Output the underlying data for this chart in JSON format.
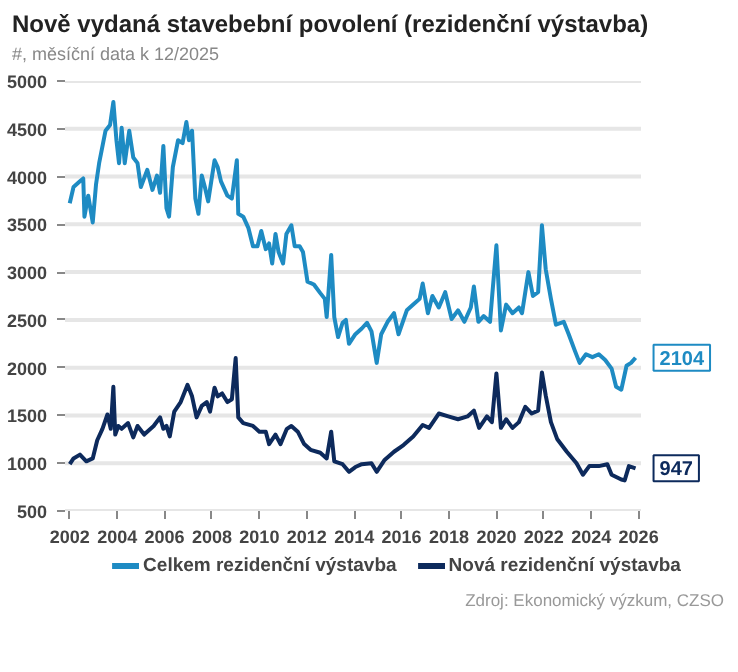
{
  "chart_data": {
    "type": "line",
    "title": "Nově vydaná stavebební povolení (rezidenční výstavba)",
    "subtitle": "#, měsíční data k 12/2025",
    "xlim": [
      2001.8,
      2026.1
    ],
    "xticks": [
      2002,
      2004,
      2006,
      2008,
      2010,
      2012,
      2014,
      2016,
      2018,
      2020,
      2022,
      2024,
      2026
    ],
    "ylim": [
      500,
      5000
    ],
    "yticks": [
      500,
      1000,
      1500,
      2000,
      2500,
      3000,
      3500,
      4000,
      4500,
      5000
    ],
    "grid": "y",
    "legend": "bottom",
    "line_style": "solid",
    "marker": "none",
    "annotations": [
      {
        "text": "2104",
        "x": 2025.87,
        "y": 2104
      },
      {
        "text": "947",
        "x": 2025.87,
        "y": 947
      },
      "Zdroj: Ekonomický výzkum, CZSO"
    ],
    "series": [
      {
        "name": "Celkem rezidenční výstavba",
        "color": "#1e8bc3",
        "x": [
          2002.0,
          2002.16,
          2002.43,
          2002.57,
          2002.62,
          2002.78,
          2002.97,
          2003.11,
          2003.24,
          2003.51,
          2003.7,
          2003.84,
          2003.97,
          2004.08,
          2004.19,
          2004.32,
          2004.51,
          2004.68,
          2004.86,
          2005.0,
          2005.27,
          2005.49,
          2005.68,
          2005.81,
          2005.95,
          2006.08,
          2006.19,
          2006.35,
          2006.57,
          2006.76,
          2006.92,
          2007.03,
          2007.16,
          2007.3,
          2007.43,
          2007.57,
          2007.7,
          2007.84,
          2007.97,
          2008.11,
          2008.24,
          2008.38,
          2008.65,
          2008.84,
          2009.05,
          2009.11,
          2009.32,
          2009.54,
          2009.73,
          2009.92,
          2010.08,
          2010.27,
          2010.41,
          2010.54,
          2010.68,
          2010.81,
          2011.0,
          2011.14,
          2011.35,
          2011.49,
          2011.7,
          2011.84,
          2012.03,
          2012.3,
          2012.57,
          2012.76,
          2012.84,
          2013.03,
          2013.16,
          2013.32,
          2013.51,
          2013.65,
          2013.78,
          2014.05,
          2014.32,
          2014.54,
          2014.73,
          2014.95,
          2015.14,
          2015.41,
          2015.68,
          2015.87,
          2016.22,
          2016.49,
          2016.76,
          2016.89,
          2017.11,
          2017.3,
          2017.57,
          2017.84,
          2018.11,
          2018.38,
          2018.65,
          2018.92,
          2019.05,
          2019.24,
          2019.46,
          2019.73,
          2020.0,
          2020.19,
          2020.41,
          2020.68,
          2020.95,
          2021.08,
          2021.35,
          2021.54,
          2021.76,
          2021.92,
          2022.08,
          2022.3,
          2022.51,
          2022.84,
          2023.05,
          2023.32,
          2023.51,
          2023.78,
          2024.05,
          2024.32,
          2024.59,
          2024.86,
          2025.05,
          2025.27,
          2025.49,
          2025.68,
          2025.87
        ],
        "values": [
          3720,
          3890,
          3950,
          3980,
          3580,
          3800,
          3520,
          3920,
          4140,
          4480,
          4540,
          4780,
          4380,
          4140,
          4510,
          4140,
          4480,
          4200,
          4140,
          3890,
          4070,
          3860,
          4010,
          3830,
          4320,
          3670,
          3580,
          4100,
          4380,
          4350,
          4570,
          4380,
          4480,
          3770,
          3610,
          4010,
          3890,
          3740,
          3950,
          4170,
          4100,
          3950,
          3800,
          3770,
          4170,
          3610,
          3580,
          3460,
          3270,
          3270,
          3430,
          3240,
          3300,
          3090,
          3400,
          3210,
          3090,
          3400,
          3490,
          3270,
          3270,
          3210,
          2900,
          2870,
          2780,
          2720,
          2530,
          3180,
          2530,
          2320,
          2470,
          2500,
          2250,
          2350,
          2410,
          2470,
          2380,
          2050,
          2350,
          2480,
          2570,
          2350,
          2600,
          2660,
          2720,
          2880,
          2570,
          2750,
          2630,
          2790,
          2510,
          2600,
          2480,
          2630,
          2850,
          2480,
          2540,
          2480,
          3280,
          2390,
          2660,
          2570,
          2630,
          2570,
          3000,
          2750,
          2790,
          3490,
          3030,
          2720,
          2450,
          2480,
          2350,
          2170,
          2050,
          2140,
          2110,
          2140,
          2080,
          1990,
          1800,
          1770,
          2020,
          2050,
          2104
        ]
      },
      {
        "name": "Nová rezidenční výstavba",
        "color": "#0d2a5c",
        "x": [
          2002.0,
          2002.16,
          2002.43,
          2002.7,
          2002.97,
          2003.16,
          2003.38,
          2003.59,
          2003.73,
          2003.84,
          2003.92,
          2004.05,
          2004.19,
          2004.46,
          2004.68,
          2004.86,
          2005.14,
          2005.54,
          2005.81,
          2005.95,
          2006.08,
          2006.22,
          2006.41,
          2006.68,
          2006.97,
          2007.16,
          2007.35,
          2007.57,
          2007.78,
          2007.92,
          2008.11,
          2008.24,
          2008.43,
          2008.65,
          2008.84,
          2009.0,
          2009.11,
          2009.32,
          2009.73,
          2010.0,
          2010.27,
          2010.41,
          2010.68,
          2010.89,
          2011.16,
          2011.35,
          2011.62,
          2011.89,
          2012.16,
          2012.57,
          2012.84,
          2013.03,
          2013.16,
          2013.51,
          2013.78,
          2014.05,
          2014.32,
          2014.73,
          2014.95,
          2015.27,
          2015.68,
          2016.08,
          2016.49,
          2016.89,
          2017.16,
          2017.57,
          2017.97,
          2018.38,
          2018.78,
          2019.05,
          2019.27,
          2019.6,
          2019.81,
          2020.0,
          2020.19,
          2020.41,
          2020.68,
          2020.95,
          2021.22,
          2021.49,
          2021.76,
          2021.92,
          2022.08,
          2022.3,
          2022.57,
          2022.97,
          2023.38,
          2023.65,
          2023.92,
          2024.32,
          2024.68,
          2024.86,
          2025.27,
          2025.41,
          2025.59,
          2025.87
        ],
        "values": [
          990,
          1050,
          1090,
          1020,
          1050,
          1240,
          1360,
          1510,
          1360,
          1800,
          1300,
          1390,
          1360,
          1420,
          1270,
          1390,
          1300,
          1390,
          1480,
          1360,
          1390,
          1280,
          1540,
          1640,
          1820,
          1700,
          1480,
          1600,
          1640,
          1540,
          1790,
          1700,
          1730,
          1640,
          1670,
          2100,
          1480,
          1420,
          1390,
          1330,
          1330,
          1200,
          1300,
          1200,
          1360,
          1390,
          1330,
          1200,
          1140,
          1110,
          1050,
          1330,
          1020,
          990,
          910,
          960,
          990,
          1000,
          910,
          1030,
          1120,
          1190,
          1280,
          1400,
          1370,
          1520,
          1490,
          1460,
          1490,
          1550,
          1370,
          1490,
          1430,
          1940,
          1370,
          1460,
          1370,
          1430,
          1590,
          1520,
          1550,
          1950,
          1710,
          1430,
          1250,
          1120,
          1000,
          880,
          970,
          970,
          990,
          880,
          830,
          820,
          970,
          947
        ]
      }
    ]
  }
}
